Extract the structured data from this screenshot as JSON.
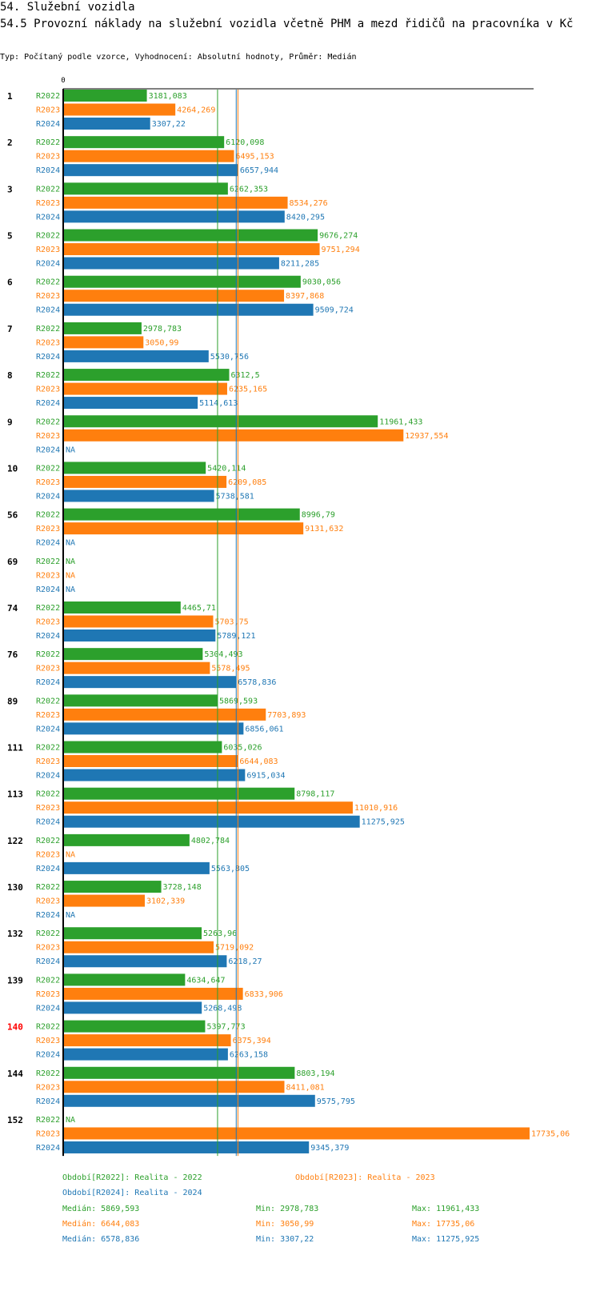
{
  "header": {
    "section": "54. Služební vozidla",
    "title": "54.5 Provozní náklady na služební vozidla včetně PHM a mezd řidičů na pracovníka v Kč",
    "subtitle": "Typ: Počítaný podle vzorce, Vyhodnocení: Absolutní hodnoty, Průměr: Medián"
  },
  "colors": {
    "R2022": "#2ca02c",
    "R2023": "#ff7f0e",
    "R2024": "#1f77b4",
    "highlight": "#ff0000"
  },
  "chart_data": {
    "type": "bar",
    "orientation": "horizontal",
    "axis_zero_label": "0",
    "xlim": [
      0,
      17735.06
    ],
    "series_names": [
      "R2022",
      "R2023",
      "R2024"
    ],
    "na_label": "NA",
    "highlight_category": "140",
    "groups": [
      {
        "id": "1",
        "values": [
          3181.083,
          4264.269,
          3307.22
        ],
        "labels": [
          "3181,083",
          "4264,269",
          "3307,22"
        ]
      },
      {
        "id": "2",
        "values": [
          6120.098,
          6495.153,
          6657.944
        ],
        "labels": [
          "6120,098",
          "6495,153",
          "6657,944"
        ]
      },
      {
        "id": "3",
        "values": [
          6262.353,
          8534.276,
          8420.295
        ],
        "labels": [
          "6262,353",
          "8534,276",
          "8420,295"
        ]
      },
      {
        "id": "5",
        "values": [
          9676.274,
          9751.294,
          8211.285
        ],
        "labels": [
          "9676,274",
          "9751,294",
          "8211,285"
        ]
      },
      {
        "id": "6",
        "values": [
          9030.056,
          8397.868,
          9509.724
        ],
        "labels": [
          "9030,056",
          "8397,868",
          "9509,724"
        ]
      },
      {
        "id": "7",
        "values": [
          2978.783,
          3050.99,
          5530.756
        ],
        "labels": [
          "2978,783",
          "3050,99",
          "5530,756"
        ]
      },
      {
        "id": "8",
        "values": [
          6312.5,
          6235.165,
          5114.613
        ],
        "labels": [
          "6312,5",
          "6235,165",
          "5114,613"
        ]
      },
      {
        "id": "9",
        "values": [
          11961.433,
          12937.554,
          null
        ],
        "labels": [
          "11961,433",
          "12937,554",
          "NA"
        ]
      },
      {
        "id": "10",
        "values": [
          5420.114,
          6209.085,
          5738.581
        ],
        "labels": [
          "5420,114",
          "6209,085",
          "5738,581"
        ]
      },
      {
        "id": "56",
        "values": [
          8996.79,
          9131.632,
          null
        ],
        "labels": [
          "8996,79",
          "9131,632",
          "NA"
        ]
      },
      {
        "id": "69",
        "values": [
          null,
          null,
          null
        ],
        "labels": [
          "NA",
          "NA",
          "NA"
        ]
      },
      {
        "id": "74",
        "values": [
          4465.71,
          5703.75,
          5789.121
        ],
        "labels": [
          "4465,71",
          "5703,75",
          "5789,121"
        ]
      },
      {
        "id": "76",
        "values": [
          5304.493,
          5578.495,
          6578.836
        ],
        "labels": [
          "5304,493",
          "5578,495",
          "6578,836"
        ]
      },
      {
        "id": "89",
        "values": [
          5869.593,
          7703.893,
          6856.061
        ],
        "labels": [
          "5869,593",
          "7703,893",
          "6856,061"
        ]
      },
      {
        "id": "111",
        "values": [
          6035.026,
          6644.083,
          6915.034
        ],
        "labels": [
          "6035,026",
          "6644,083",
          "6915,034"
        ]
      },
      {
        "id": "113",
        "values": [
          8798.117,
          11010.916,
          11275.925
        ],
        "labels": [
          "8798,117",
          "11010,916",
          "11275,925"
        ]
      },
      {
        "id": "122",
        "values": [
          4802.784,
          null,
          5563.805
        ],
        "labels": [
          "4802,784",
          "NA",
          "5563,805"
        ]
      },
      {
        "id": "130",
        "values": [
          3728.148,
          3102.339,
          null
        ],
        "labels": [
          "3728,148",
          "3102,339",
          "NA"
        ]
      },
      {
        "id": "132",
        "values": [
          5263.96,
          5719.092,
          6218.27
        ],
        "labels": [
          "5263,96",
          "5719,092",
          "6218,27"
        ]
      },
      {
        "id": "139",
        "values": [
          4634.647,
          6833.906,
          5268.498
        ],
        "labels": [
          "4634,647",
          "6833,906",
          "5268,498"
        ]
      },
      {
        "id": "140",
        "values": [
          5397.773,
          6375.394,
          6263.158
        ],
        "labels": [
          "5397,773",
          "6375,394",
          "6263,158"
        ]
      },
      {
        "id": "144",
        "values": [
          8803.194,
          8411.081,
          9575.795
        ],
        "labels": [
          "8803,194",
          "8411,081",
          "9575,795"
        ]
      },
      {
        "id": "152",
        "values": [
          null,
          17735.06,
          9345.379
        ],
        "labels": [
          "NA",
          "17735,06",
          "9345,379"
        ]
      }
    ],
    "medians": [
      5869.593,
      6644.083,
      6578.836
    ]
  },
  "legend": {
    "r2022": "Období[R2022]: Realita - 2022",
    "r2023": "Období[R2023]: Realita - 2023",
    "r2024": "Období[R2024]: Realita - 2024"
  },
  "stats": [
    {
      "median": "Medián: 5869,593",
      "min": "Min: 2978,783",
      "max": "Max: 11961,433"
    },
    {
      "median": "Medián: 6644,083",
      "min": "Min: 3050,99",
      "max": "Max: 17735,06"
    },
    {
      "median": "Medián: 6578,836",
      "min": "Min: 3307,22",
      "max": "Max: 11275,925"
    }
  ]
}
